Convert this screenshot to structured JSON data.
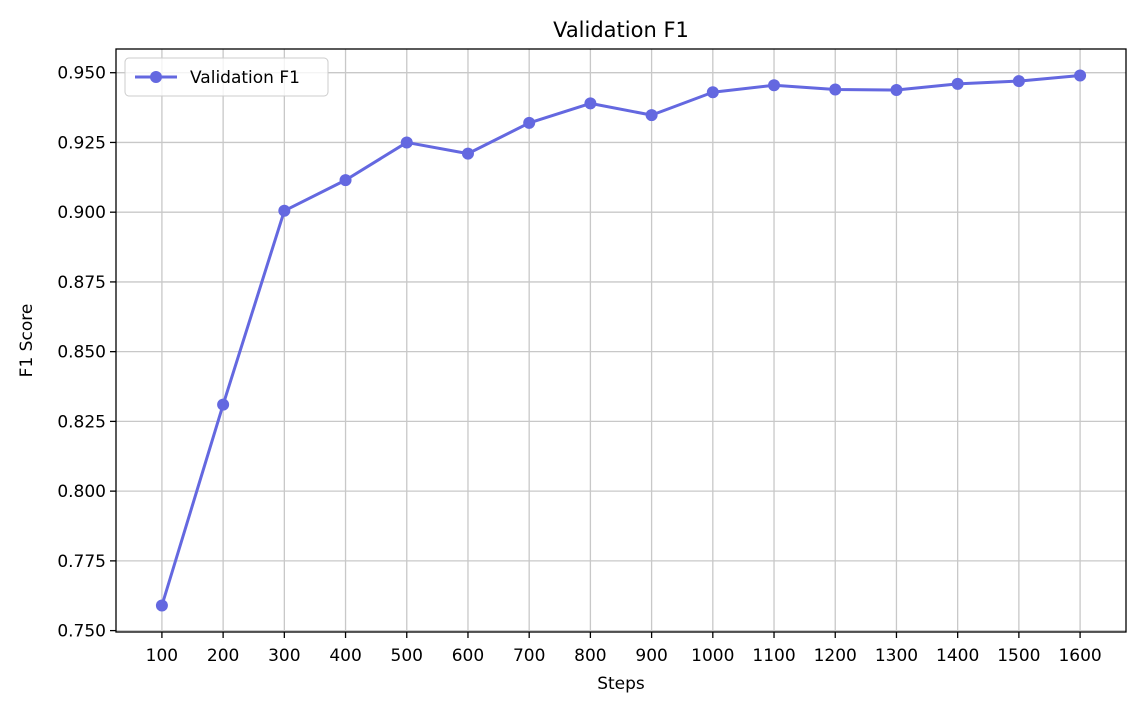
{
  "chart_data": {
    "type": "line",
    "title": "Validation F1",
    "xlabel": "Steps",
    "ylabel": "F1 Score",
    "x": [
      100,
      200,
      300,
      400,
      500,
      600,
      700,
      800,
      900,
      1000,
      1100,
      1200,
      1300,
      1400,
      1500,
      1600
    ],
    "xticks": [
      100,
      200,
      300,
      400,
      500,
      600,
      700,
      800,
      900,
      1000,
      1100,
      1200,
      1300,
      1400,
      1500,
      1600
    ],
    "xlim": [
      25,
      1675
    ],
    "ylim": [
      0.7495,
      0.9585
    ],
    "yticks": [
      0.75,
      0.775,
      0.8,
      0.825,
      0.85,
      0.875,
      0.9,
      0.925,
      0.95
    ],
    "ytick_labels": [
      "0.750",
      "0.775",
      "0.800",
      "0.825",
      "0.850",
      "0.875",
      "0.900",
      "0.925",
      "0.950"
    ],
    "grid": true,
    "legend_position": "top-left",
    "series": [
      {
        "name": "Validation F1",
        "color": "#6468e0",
        "marker": "circle",
        "values": [
          0.759,
          0.831,
          0.9005,
          0.9115,
          0.925,
          0.921,
          0.932,
          0.939,
          0.9348,
          0.943,
          0.9455,
          0.944,
          0.9438,
          0.946,
          0.947,
          0.949
        ]
      }
    ]
  }
}
